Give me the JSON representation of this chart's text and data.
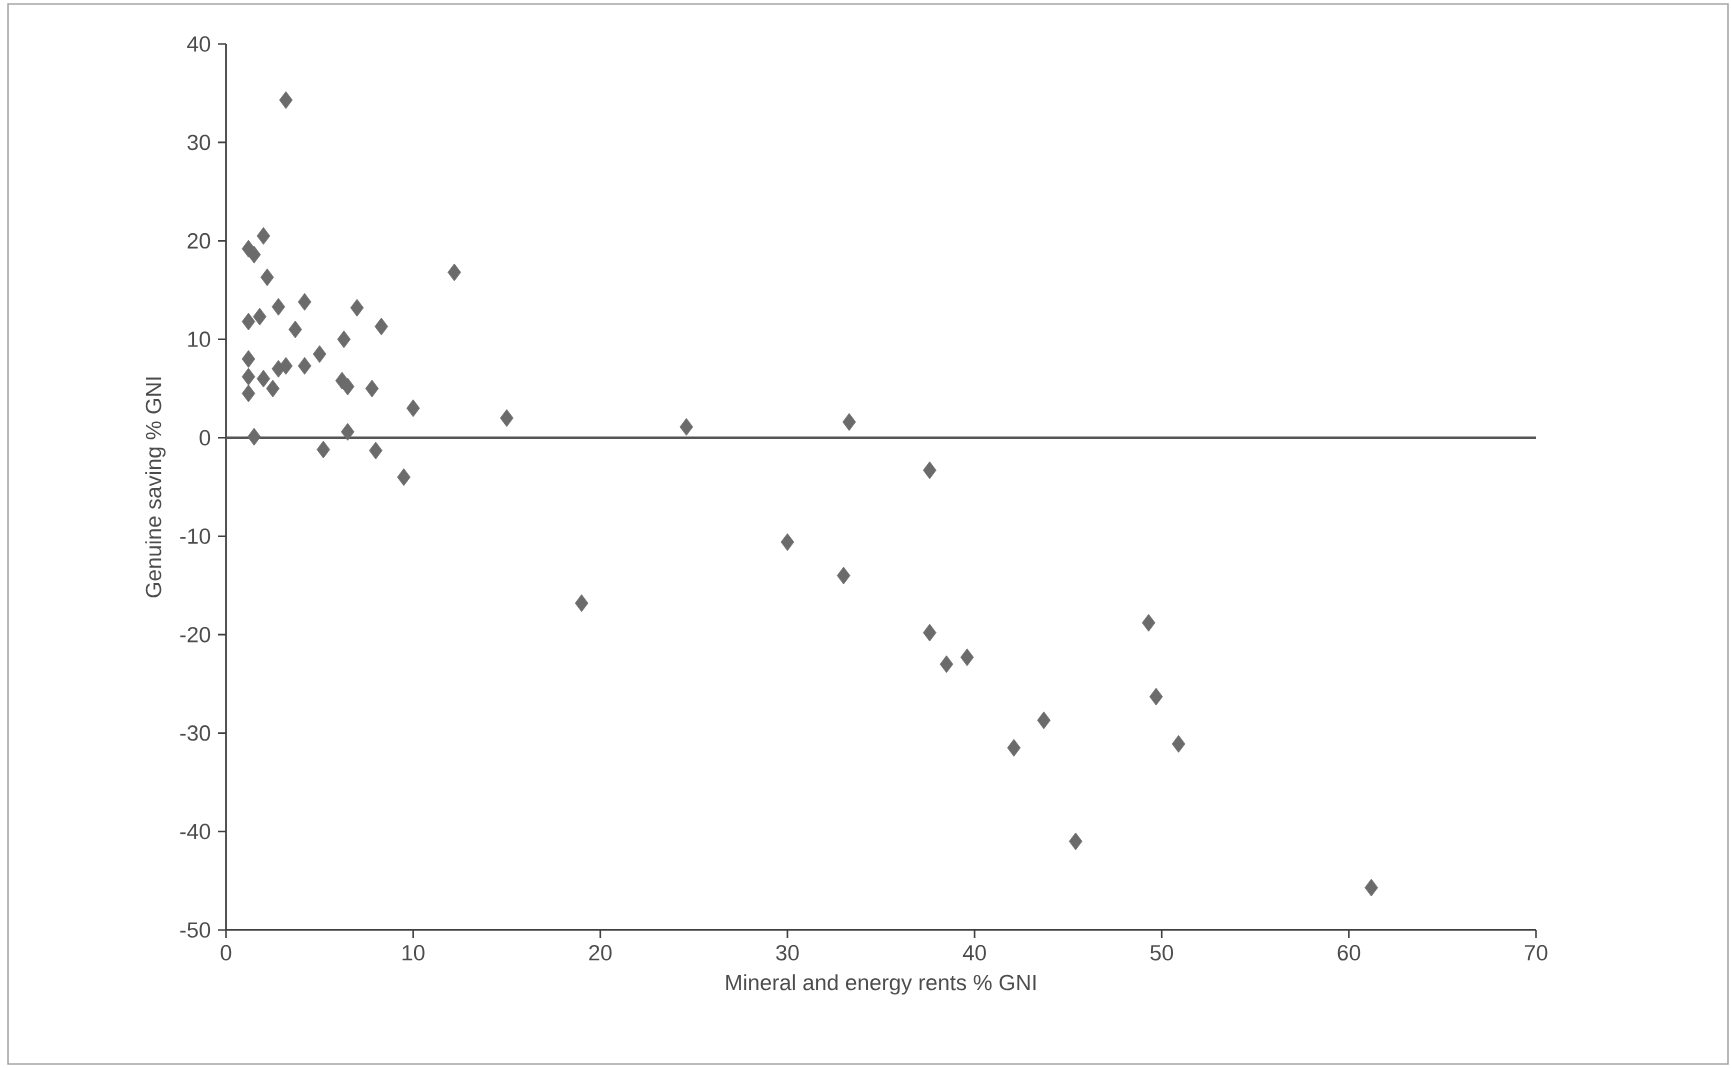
{
  "chart_data": {
    "type": "scatter",
    "xlabel": "Mineral and energy rents % GNI",
    "ylabel": "Genuine saving % GNI",
    "xlim": [
      0,
      70
    ],
    "xticks": [
      0,
      10,
      20,
      30,
      40,
      50,
      60,
      70
    ],
    "ylim": [
      -50,
      40
    ],
    "yticks": [
      -50,
      -40,
      -30,
      -20,
      -10,
      0,
      10,
      20,
      30,
      40
    ],
    "marker": "diamond",
    "grid": false,
    "ref_lines": [
      {
        "axis": "y",
        "value": 0,
        "color": "#555555",
        "line_style": "solid"
      }
    ],
    "series": [
      {
        "color": "#6b6b6b",
        "x": [
          3.2,
          1.2,
          1.5,
          2.0,
          2.2,
          1.2,
          1.8,
          2.8,
          4.2,
          3.7,
          1.2,
          1.2,
          1.2,
          2.0,
          2.8,
          3.2,
          4.2,
          2.5,
          5.0,
          6.3,
          7.0,
          8.3,
          6.2,
          6.5,
          7.8,
          1.5,
          5.2,
          6.5,
          8.0,
          9.5,
          10.0,
          12.2,
          15.0,
          19.0,
          24.6,
          30.0,
          33.3,
          33.0,
          37.6,
          37.6,
          38.5,
          39.6,
          42.1,
          43.7,
          45.4,
          49.3,
          49.7,
          50.9,
          61.2
        ],
        "values": [
          34.3,
          19.2,
          18.6,
          20.5,
          16.3,
          11.8,
          12.3,
          13.3,
          13.8,
          11.0,
          8.0,
          6.2,
          4.5,
          6.0,
          7.0,
          7.3,
          7.3,
          5.0,
          8.5,
          10.0,
          13.2,
          11.3,
          5.8,
          5.2,
          5.0,
          0.1,
          -1.2,
          0.6,
          -1.3,
          -4.0,
          3.0,
          16.8,
          2.0,
          -16.8,
          1.1,
          -10.6,
          1.6,
          -14.0,
          -3.3,
          -19.8,
          -23.0,
          -22.3,
          -31.5,
          -28.7,
          -41.0,
          -18.8,
          -26.3,
          -31.1,
          -45.7
        ]
      }
    ]
  }
}
